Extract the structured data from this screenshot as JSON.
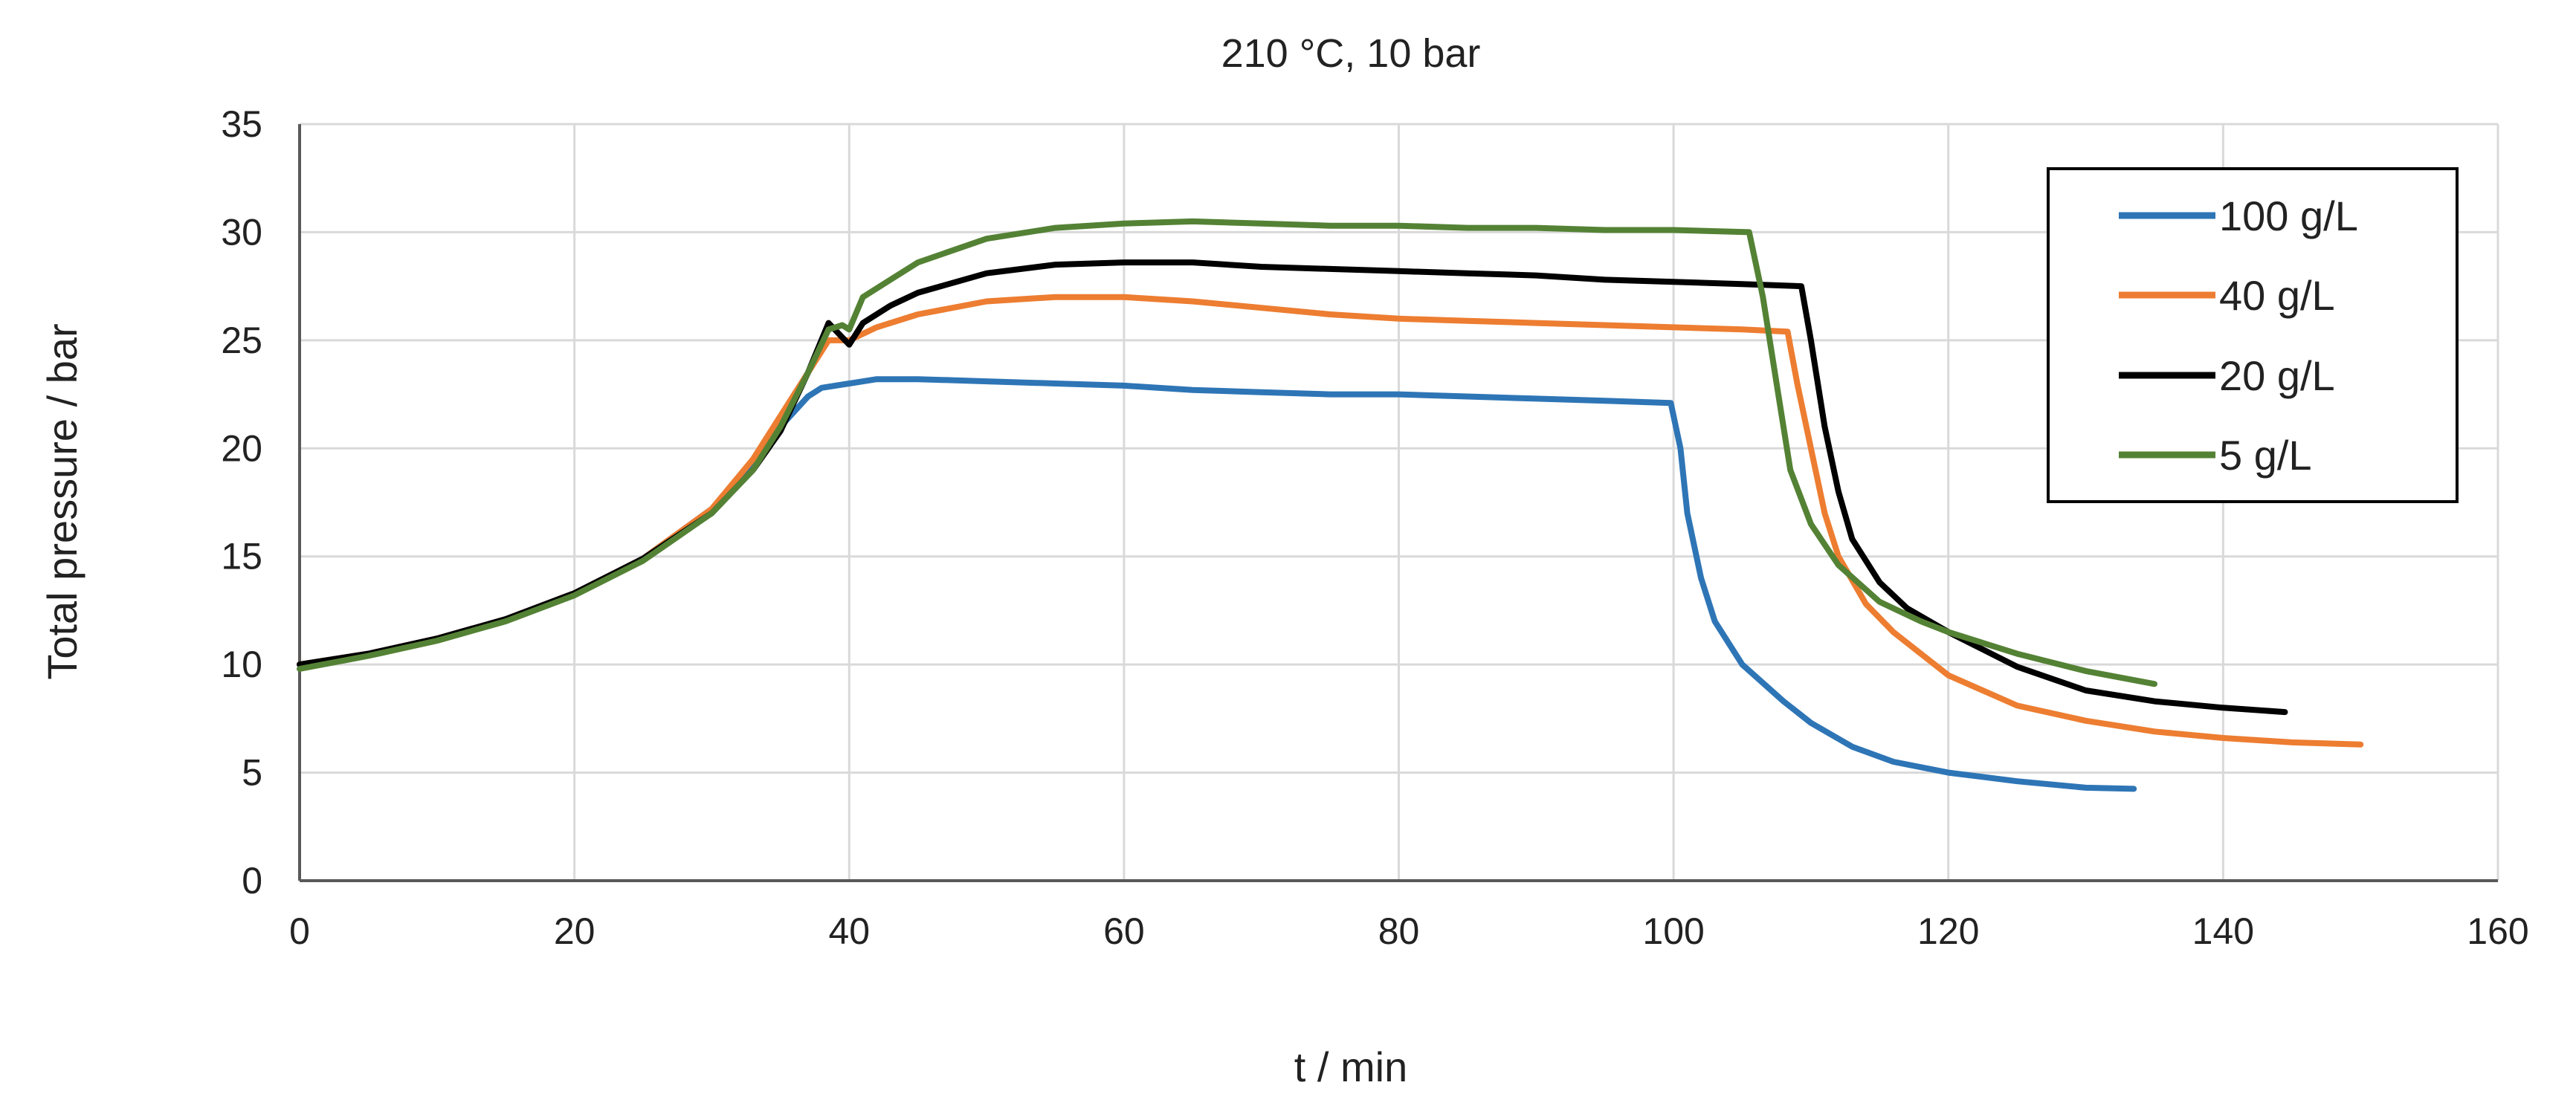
{
  "chart_data": {
    "type": "line",
    "title": "210 °C, 10 bar",
    "xlabel": "t / min",
    "ylabel": "Total pressure / bar",
    "xlim": [
      0,
      160
    ],
    "ylim": [
      0,
      35
    ],
    "xticks": [
      0,
      20,
      40,
      60,
      80,
      100,
      120,
      140,
      160
    ],
    "yticks": [
      0,
      5,
      10,
      15,
      20,
      25,
      30,
      35
    ],
    "grid": true,
    "legend": "top-right",
    "series": [
      {
        "name": "100 g/L",
        "color": "#2e75b6",
        "points": [
          [
            0,
            10
          ],
          [
            5,
            10.5
          ],
          [
            10,
            11.2
          ],
          [
            15,
            12.1
          ],
          [
            20,
            13.3
          ],
          [
            25,
            14.9
          ],
          [
            30,
            17.2
          ],
          [
            33,
            19.3
          ],
          [
            35,
            21
          ],
          [
            37,
            22.4
          ],
          [
            38,
            22.8
          ],
          [
            40,
            23
          ],
          [
            42,
            23.2
          ],
          [
            45,
            23.2
          ],
          [
            50,
            23.1
          ],
          [
            55,
            23
          ],
          [
            60,
            22.9
          ],
          [
            65,
            22.7
          ],
          [
            70,
            22.6
          ],
          [
            75,
            22.5
          ],
          [
            80,
            22.5
          ],
          [
            85,
            22.4
          ],
          [
            90,
            22.3
          ],
          [
            95,
            22.2
          ],
          [
            99.8,
            22.1
          ],
          [
            100.5,
            20
          ],
          [
            101,
            17
          ],
          [
            102,
            14
          ],
          [
            103,
            12
          ],
          [
            105,
            10
          ],
          [
            108,
            8.3
          ],
          [
            110,
            7.3
          ],
          [
            113,
            6.2
          ],
          [
            116,
            5.5
          ],
          [
            120,
            5
          ],
          [
            125,
            4.6
          ],
          [
            130,
            4.3
          ],
          [
            133.5,
            4.25
          ]
        ]
      },
      {
        "name": "40 g/L",
        "color": "#ed7d31",
        "points": [
          [
            0,
            10
          ],
          [
            5,
            10.5
          ],
          [
            10,
            11.2
          ],
          [
            15,
            12.1
          ],
          [
            20,
            13.3
          ],
          [
            25,
            14.9
          ],
          [
            30,
            17.2
          ],
          [
            33,
            19.5
          ],
          [
            35,
            21.5
          ],
          [
            37,
            23.5
          ],
          [
            38.5,
            25
          ],
          [
            40,
            25
          ],
          [
            42,
            25.6
          ],
          [
            45,
            26.2
          ],
          [
            50,
            26.8
          ],
          [
            55,
            27
          ],
          [
            60,
            27
          ],
          [
            65,
            26.8
          ],
          [
            70,
            26.5
          ],
          [
            75,
            26.2
          ],
          [
            80,
            26
          ],
          [
            85,
            25.9
          ],
          [
            90,
            25.8
          ],
          [
            95,
            25.7
          ],
          [
            100,
            25.6
          ],
          [
            105,
            25.5
          ],
          [
            108.3,
            25.4
          ],
          [
            109,
            23
          ],
          [
            110,
            20
          ],
          [
            111,
            17
          ],
          [
            112,
            15
          ],
          [
            114,
            12.8
          ],
          [
            116,
            11.5
          ],
          [
            120,
            9.5
          ],
          [
            125,
            8.1
          ],
          [
            130,
            7.4
          ],
          [
            135,
            6.9
          ],
          [
            140,
            6.6
          ],
          [
            145,
            6.4
          ],
          [
            150,
            6.3
          ]
        ]
      },
      {
        "name": "20 g/L",
        "color": "#000000",
        "points": [
          [
            0,
            10
          ],
          [
            5,
            10.5
          ],
          [
            10,
            11.2
          ],
          [
            15,
            12.1
          ],
          [
            20,
            13.3
          ],
          [
            25,
            14.9
          ],
          [
            30,
            17
          ],
          [
            33,
            19
          ],
          [
            35,
            20.8
          ],
          [
            37,
            23.5
          ],
          [
            38.5,
            25.8
          ],
          [
            40,
            24.8
          ],
          [
            41,
            25.8
          ],
          [
            43,
            26.6
          ],
          [
            45,
            27.2
          ],
          [
            50,
            28.1
          ],
          [
            55,
            28.5
          ],
          [
            60,
            28.6
          ],
          [
            65,
            28.6
          ],
          [
            70,
            28.4
          ],
          [
            75,
            28.3
          ],
          [
            80,
            28.2
          ],
          [
            85,
            28.1
          ],
          [
            90,
            28
          ],
          [
            95,
            27.8
          ],
          [
            100,
            27.7
          ],
          [
            105,
            27.6
          ],
          [
            109.3,
            27.5
          ],
          [
            110,
            25
          ],
          [
            111,
            21
          ],
          [
            112,
            18
          ],
          [
            113,
            15.8
          ],
          [
            115,
            13.8
          ],
          [
            117,
            12.6
          ],
          [
            120,
            11.5
          ],
          [
            125,
            9.9
          ],
          [
            130,
            8.8
          ],
          [
            135,
            8.3
          ],
          [
            140,
            8
          ],
          [
            144.5,
            7.8
          ]
        ]
      },
      {
        "name": "5 g/L",
        "color": "#548235",
        "points": [
          [
            0,
            9.8
          ],
          [
            5,
            10.4
          ],
          [
            10,
            11.1
          ],
          [
            15,
            12
          ],
          [
            20,
            13.2
          ],
          [
            25,
            14.8
          ],
          [
            30,
            17
          ],
          [
            33,
            19
          ],
          [
            35,
            21
          ],
          [
            37,
            23.5
          ],
          [
            38.5,
            25.5
          ],
          [
            39.5,
            25.7
          ],
          [
            40,
            25.5
          ],
          [
            41,
            27
          ],
          [
            43,
            27.8
          ],
          [
            45,
            28.6
          ],
          [
            50,
            29.7
          ],
          [
            55,
            30.2
          ],
          [
            60,
            30.4
          ],
          [
            65,
            30.5
          ],
          [
            70,
            30.4
          ],
          [
            75,
            30.3
          ],
          [
            80,
            30.3
          ],
          [
            85,
            30.2
          ],
          [
            90,
            30.2
          ],
          [
            95,
            30.1
          ],
          [
            100,
            30.1
          ],
          [
            105.5,
            30
          ],
          [
            106.5,
            27
          ],
          [
            107.5,
            23
          ],
          [
            108.5,
            19
          ],
          [
            110,
            16.5
          ],
          [
            112,
            14.6
          ],
          [
            115,
            12.9
          ],
          [
            118,
            12
          ],
          [
            120,
            11.5
          ],
          [
            125,
            10.5
          ],
          [
            130,
            9.7
          ],
          [
            135,
            9.1
          ]
        ]
      }
    ]
  }
}
